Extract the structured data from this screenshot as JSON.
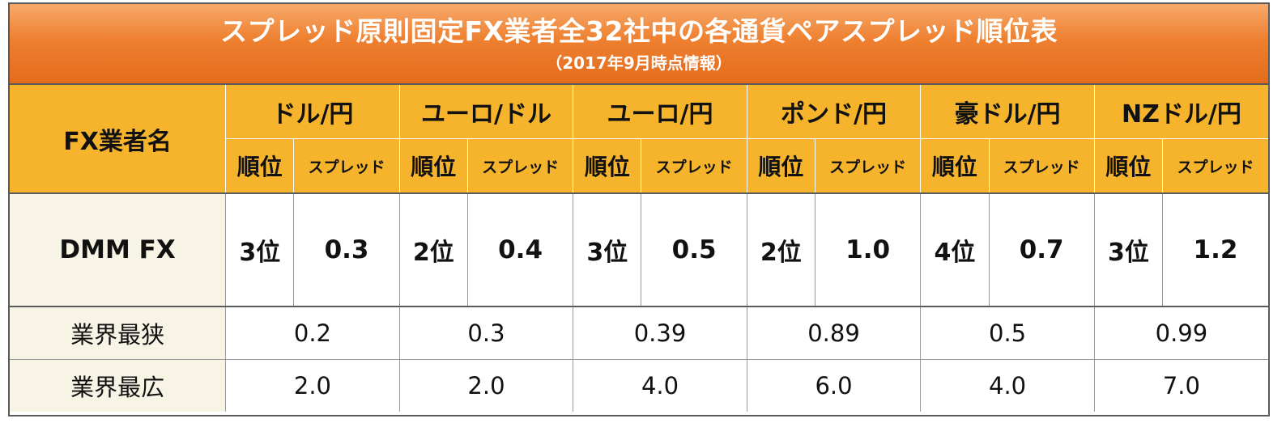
{
  "title": "スプレッド原則固定FX業者全32社中の各通貨ペアスプレッド順位表",
  "subtitle": "（2017年9月時点情報）",
  "header": {
    "name_label": "FX業者名",
    "pairs": [
      "ドル/円",
      "ユーロ/ドル",
      "ユーロ/円",
      "ポンド/円",
      "豪ドル/円",
      "NZドル/円"
    ],
    "rank_label": "順位",
    "spread_label": "スプレッド"
  },
  "rows": {
    "dmm": {
      "name": "DMM FX",
      "cells": [
        {
          "rank": "3位",
          "spread": "0.3"
        },
        {
          "rank": "2位",
          "spread": "0.4"
        },
        {
          "rank": "3位",
          "spread": "0.5"
        },
        {
          "rank": "2位",
          "spread": "1.0"
        },
        {
          "rank": "4位",
          "spread": "0.7"
        },
        {
          "rank": "3位",
          "spread": "1.2"
        }
      ]
    },
    "narrowest": {
      "label": "業界最狭",
      "values": [
        "0.2",
        "0.3",
        "0.39",
        "0.89",
        "0.5",
        "0.99"
      ]
    },
    "widest": {
      "label": "業界最広",
      "values": [
        "2.0",
        "2.0",
        "4.0",
        "6.0",
        "4.0",
        "7.0"
      ]
    }
  },
  "colors": {
    "title_band": "#ee8030",
    "header_bg": "#f5b42c",
    "label_bg": "#f7f4e6",
    "border": "#5a5a5a"
  }
}
